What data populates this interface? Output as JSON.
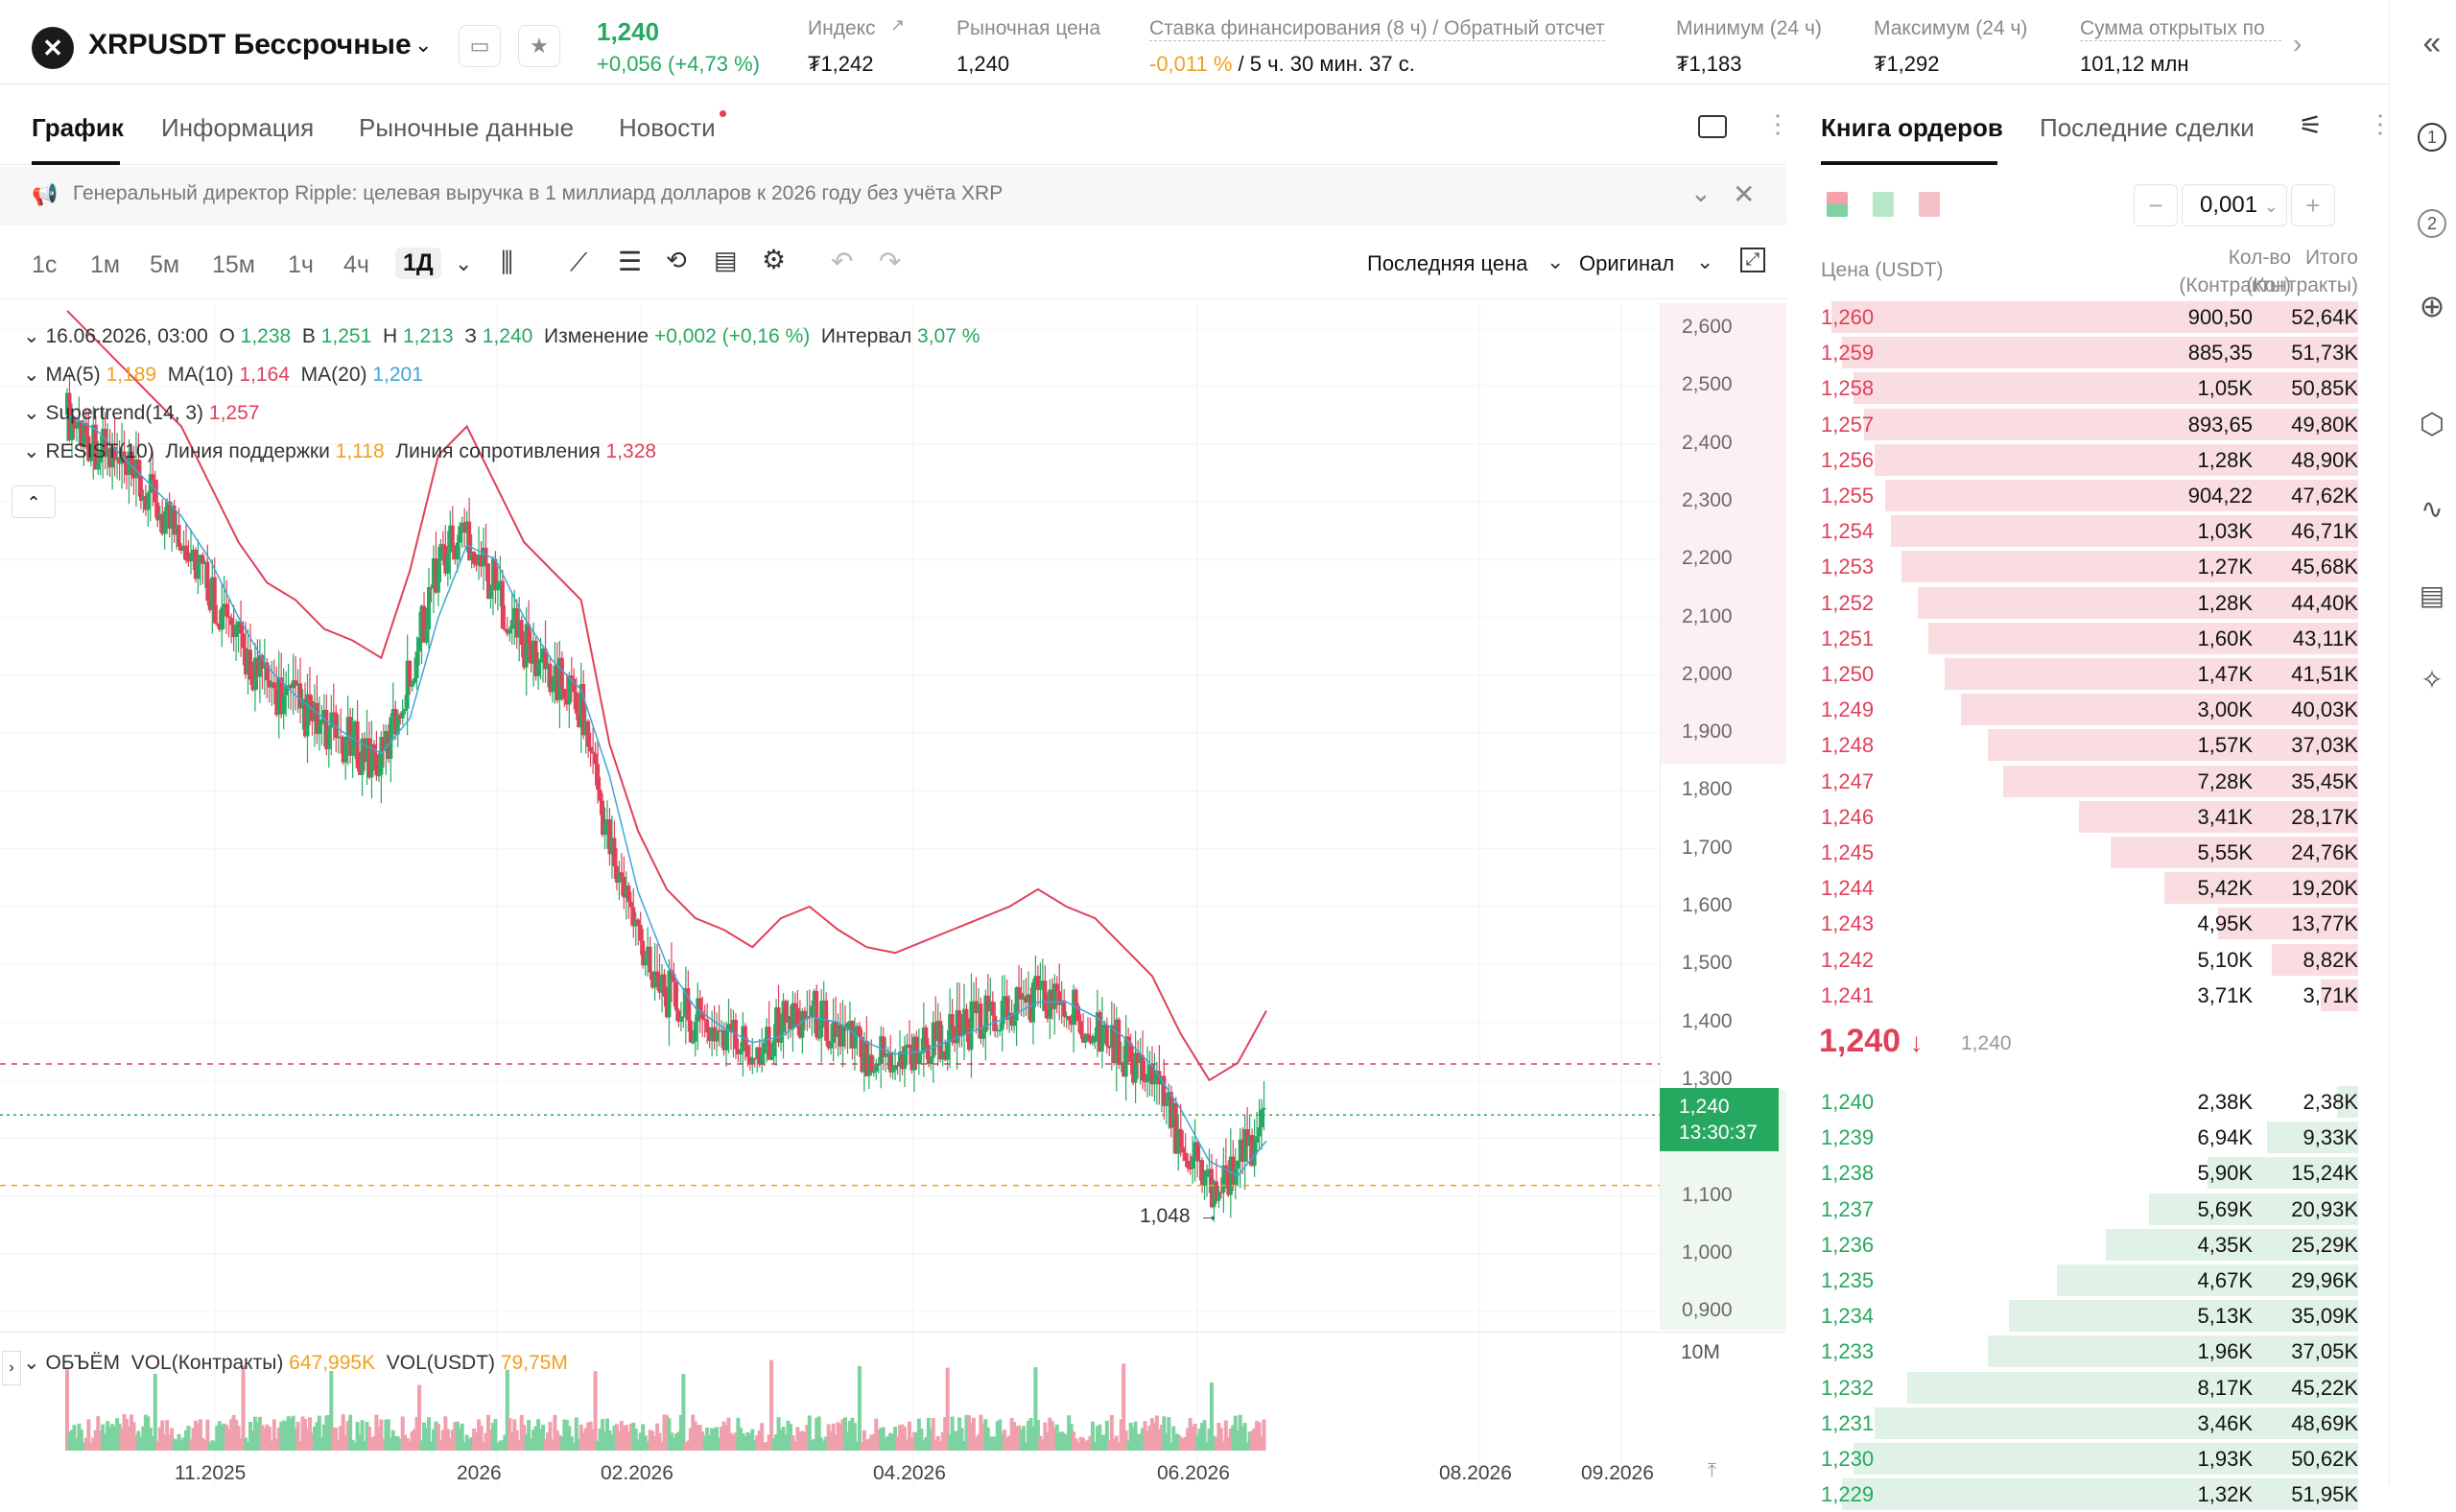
{
  "header": {
    "symbol": "XRPUSDT Бессрочные",
    "price": "1,240",
    "change": "+0,056 (+4,73 %)",
    "stats": [
      {
        "label": "Индекс",
        "value": "₮1,242"
      },
      {
        "label": "Рыночная цена",
        "value": "1,240"
      },
      {
        "label": "Ставка финансирования (8 ч) / Обратный отсчет",
        "value_neg": "-0,011 %",
        "value": "/ 5 ч. 30 мин. 37 с."
      },
      {
        "label": "Минимум (24 ч)",
        "value": "₮1,183"
      },
      {
        "label": "Максимум (24 ч)",
        "value": "₮1,292"
      },
      {
        "label": "Сумма открытых по",
        "value": "101,12 млн"
      }
    ]
  },
  "tabs": [
    "График",
    "Информация",
    "Рыночные данные",
    "Новости"
  ],
  "news": "Генеральный директор Ripple: целевая выручка в 1 миллиард долларов к 2026 году без учёта XRP",
  "timeframes": [
    "1с",
    "1м",
    "5м",
    "15м",
    "1ч",
    "4ч",
    "1Д"
  ],
  "toolbar": {
    "price_mode": "Последняя цена",
    "view_mode": "Оригинал"
  },
  "legend": {
    "date": "16.06.2026, 03:00",
    "o_l": "О",
    "o": "1,238",
    "h_l": "В",
    "h": "1,251",
    "l_l": "Н",
    "l": "1,213",
    "c_l": "З",
    "c": "1,240",
    "chg_l": "Изменение",
    "chg": "+0,002 (+0,16 %)",
    "int_l": "Интервал",
    "int": "3,07 %",
    "ma5_l": "MA(5)",
    "ma5": "1,189",
    "ma10_l": "MA(10)",
    "ma10": "1,164",
    "ma20_l": "MA(20)",
    "ma20": "1,201",
    "st_l": "Supertrend(14, 3)",
    "st": "1,257",
    "res_l": "RESIST(10)",
    "sup_l": "Линия поддержки",
    "sup": "1,118",
    "resl": "Линия сопротивления",
    "res": "1,328",
    "vol_l": "ОБЪЁМ",
    "volc_l": "VOL(Контракты)",
    "volc": "647,995K",
    "volu_l": "VOL(USDT)",
    "volu": "79,75M"
  },
  "chart_data": {
    "type": "candlestick",
    "y_ticks": [
      "2,600",
      "2,500",
      "2,400",
      "2,300",
      "2,200",
      "2,100",
      "2,000",
      "1,900",
      "1,800",
      "1,700",
      "1,600",
      "1,500",
      "1,400",
      "1,300",
      "1,200",
      "1,100",
      "1,000",
      "0,900"
    ],
    "x_ticks": [
      "11.2025",
      "2026",
      "02.2026",
      "04.2026",
      "06.2026",
      "08.2026",
      "09.2026"
    ],
    "last_price": "1,240",
    "countdown": "13:30:37",
    "low_marker": "1,048",
    "vol_tick": "10M",
    "close_path": [
      2.45,
      2.4,
      2.35,
      2.3,
      2.25,
      2.15,
      2.05,
      1.98,
      1.95,
      1.9,
      1.88,
      1.85,
      2.0,
      2.2,
      2.25,
      2.15,
      2.05,
      2.0,
      1.95,
      1.7,
      1.55,
      1.45,
      1.4,
      1.38,
      1.35,
      1.4,
      1.42,
      1.38,
      1.35,
      1.34,
      1.36,
      1.38,
      1.4,
      1.42,
      1.45,
      1.42,
      1.4,
      1.35,
      1.3,
      1.2,
      1.12,
      1.15,
      1.24
    ]
  },
  "orderbook": {
    "tab1": "Книга ордеров",
    "tab2": "Последние сделки",
    "step": "0,001",
    "h_price": "Цена (USDT)",
    "h_qty": "Кол-во",
    "h_qty2": "(Контракты)",
    "h_tot": "Итого",
    "h_tot2": "(Контракты)",
    "asks": [
      [
        "1,260",
        "900,50",
        "52,64K",
        0.98
      ],
      [
        "1,259",
        "885,35",
        "51,73K",
        0.96
      ],
      [
        "1,258",
        "1,05K",
        "50,85K",
        0.94
      ],
      [
        "1,257",
        "893,65",
        "49,80K",
        0.92
      ],
      [
        "1,256",
        "1,28K",
        "48,90K",
        0.9
      ],
      [
        "1,255",
        "904,22",
        "47,62K",
        0.88
      ],
      [
        "1,254",
        "1,03K",
        "46,71K",
        0.87
      ],
      [
        "1,253",
        "1,27K",
        "45,68K",
        0.85
      ],
      [
        "1,252",
        "1,28K",
        "44,40K",
        0.82
      ],
      [
        "1,251",
        "1,60K",
        "43,11K",
        0.8
      ],
      [
        "1,250",
        "1,47K",
        "41,51K",
        0.77
      ],
      [
        "1,249",
        "3,00K",
        "40,03K",
        0.74
      ],
      [
        "1,248",
        "1,57K",
        "37,03K",
        0.69
      ],
      [
        "1,247",
        "7,28K",
        "35,45K",
        0.66
      ],
      [
        "1,246",
        "3,41K",
        "28,17K",
        0.52
      ],
      [
        "1,245",
        "5,55K",
        "24,76K",
        0.46
      ],
      [
        "1,244",
        "5,42K",
        "19,20K",
        0.36
      ],
      [
        "1,243",
        "4,95K",
        "13,77K",
        0.26
      ],
      [
        "1,242",
        "5,10K",
        "8,82K",
        0.16
      ],
      [
        "1,241",
        "3,71K",
        "3,71K",
        0.07
      ]
    ],
    "mid_price": "1,240",
    "mid_index": "1,240",
    "bids": [
      [
        "1,240",
        "2,38K",
        "2,38K",
        0.04
      ],
      [
        "1,239",
        "6,94K",
        "9,33K",
        0.17
      ],
      [
        "1,238",
        "5,90K",
        "15,24K",
        0.28
      ],
      [
        "1,237",
        "5,69K",
        "20,93K",
        0.39
      ],
      [
        "1,236",
        "4,35K",
        "25,29K",
        0.47
      ],
      [
        "1,235",
        "4,67K",
        "29,96K",
        0.56
      ],
      [
        "1,234",
        "5,13K",
        "35,09K",
        0.65
      ],
      [
        "1,233",
        "1,96K",
        "37,05K",
        0.69
      ],
      [
        "1,232",
        "8,17K",
        "45,22K",
        0.84
      ],
      [
        "1,231",
        "3,46K",
        "48,69K",
        0.9
      ],
      [
        "1,230",
        "1,93K",
        "50,62K",
        0.94
      ],
      [
        "1,229",
        "1,32K",
        "51,95K",
        0.96
      ]
    ]
  },
  "colors": {
    "up": "#27a861",
    "down": "#e0405a",
    "ask_bg": "#f9dde1",
    "bid_bg": "#dff2e5"
  }
}
